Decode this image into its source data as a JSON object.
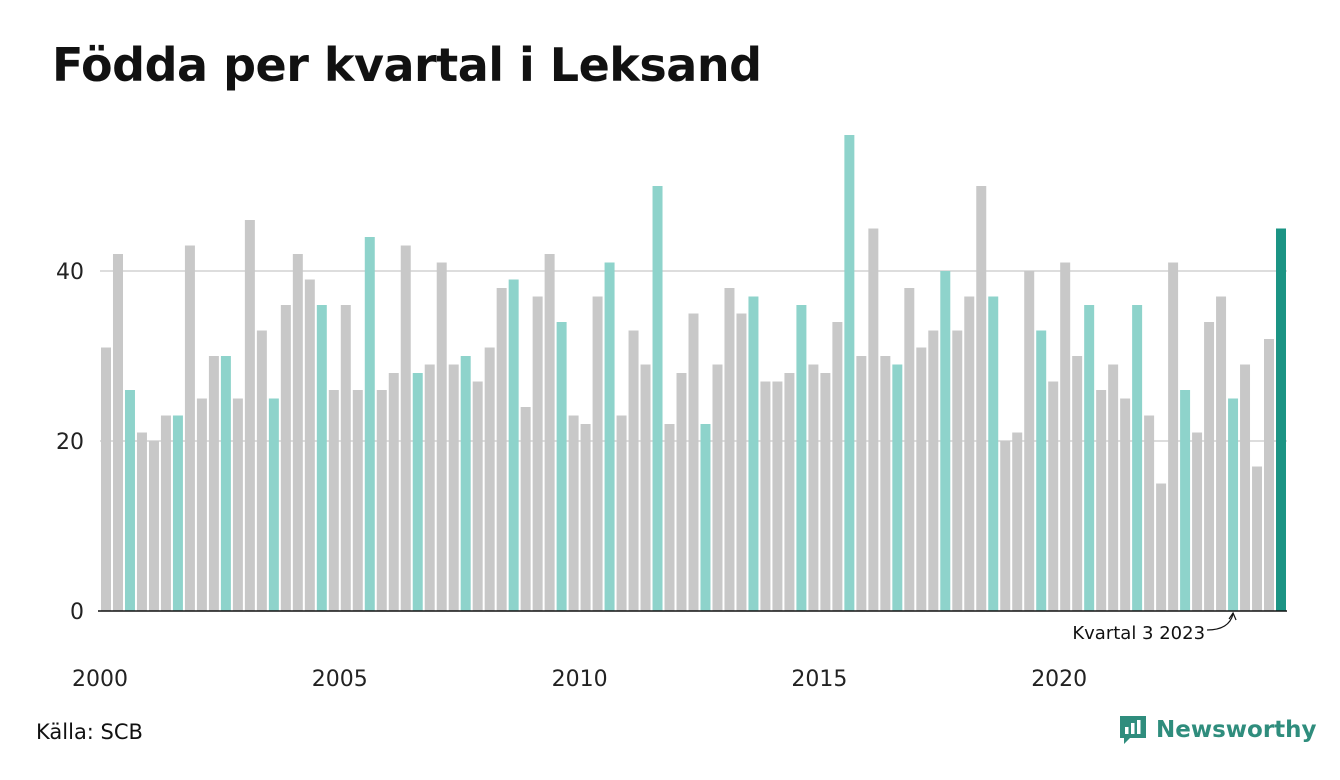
{
  "title": "Födda per kvartal i Leksand",
  "source": "Källa: SCB",
  "brand": {
    "name": "Newsworthy",
    "icon": "newsworthy-logo-icon"
  },
  "colors": {
    "other": "#c8c8c8",
    "q3": "#8ed3cb",
    "highlight": "#1b9484",
    "axis": "#111111",
    "grid": "#dddddd",
    "brand": "#2f8d7d"
  },
  "chart_data": {
    "type": "bar",
    "title": "Födda per kvartal i Leksand",
    "xlabel": "",
    "ylabel": "",
    "ylim": [
      0,
      56
    ],
    "yticks": [
      0,
      20,
      40
    ],
    "grid": true,
    "start": {
      "year": 2000,
      "quarter": 1
    },
    "xtick_labels": [
      "2000",
      "2005",
      "2010",
      "2015",
      "2020"
    ],
    "values": [
      31,
      42,
      26,
      21,
      20,
      23,
      23,
      43,
      25,
      30,
      30,
      25,
      46,
      33,
      25,
      36,
      42,
      39,
      36,
      26,
      36,
      26,
      44,
      26,
      28,
      43,
      28,
      29,
      41,
      29,
      30,
      27,
      31,
      38,
      39,
      24,
      37,
      42,
      34,
      23,
      22,
      37,
      41,
      23,
      33,
      29,
      50,
      22,
      28,
      35,
      22,
      29,
      38,
      35,
      37,
      27,
      27,
      28,
      36,
      29,
      28,
      34,
      56,
      30,
      45,
      30,
      29,
      38,
      31,
      33,
      40,
      33,
      37,
      50,
      37,
      20,
      21,
      40,
      33,
      27,
      41,
      30,
      36,
      26,
      29,
      25,
      36,
      23,
      15,
      41,
      26,
      21,
      34,
      37,
      25,
      29,
      17,
      32,
      45
    ],
    "annotation": {
      "text": "Kvartal 3 2023",
      "index": 94
    }
  }
}
